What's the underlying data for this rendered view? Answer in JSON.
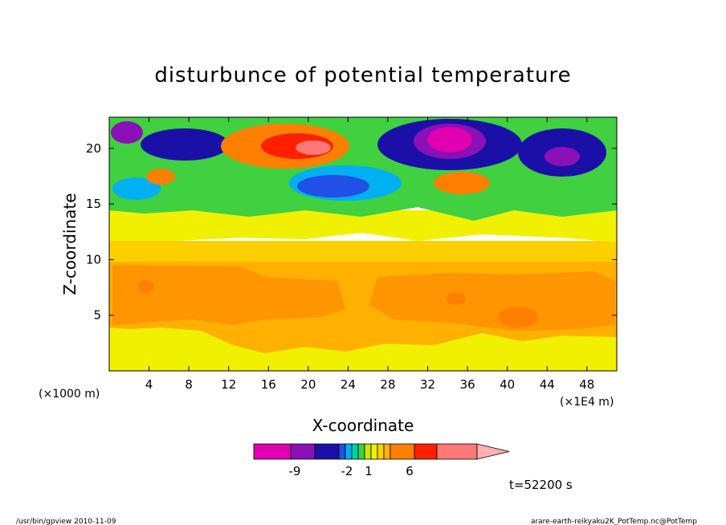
{
  "chart_data": {
    "type": "heatmap",
    "title": "disturbunce of potential temperature",
    "xlabel": "X-coordinate",
    "ylabel": "Z-coordinate",
    "x_unit_left": "(×1000 m)",
    "x_unit_right": "(×1E4 m)",
    "xlim": [
      0,
      51
    ],
    "ylim": [
      0,
      22.8
    ],
    "x_ticks": [
      4,
      8,
      12,
      16,
      20,
      24,
      28,
      32,
      36,
      40,
      44,
      48
    ],
    "y_ticks": [
      5,
      10,
      15,
      20
    ],
    "colorbar": {
      "colors": [
        "#e000b0",
        "#8a10b8",
        "#1a10a8",
        "#2050e8",
        "#00b0f0",
        "#00d0a0",
        "#40d040",
        "#c8e800",
        "#f0f000",
        "#ffd000",
        "#ffb000",
        "#ff8000",
        "#ff2000",
        "#ff7878",
        "#ffb0b0"
      ],
      "labels": [
        "-9",
        "-2",
        "1",
        "6"
      ]
    },
    "time_label": "t=52200 s",
    "regions": [
      {
        "zmin": 0,
        "zmax": 4,
        "level": 1,
        "note": "near-surface band"
      },
      {
        "zmin": 4,
        "zmax": 10,
        "level": 3,
        "note": "orange band with warm patches"
      },
      {
        "zmin": 10,
        "zmax": 16,
        "level": 2,
        "note": "yellow-orange band"
      },
      {
        "zmin": 16,
        "zmax": 22.8,
        "level": "mixed",
        "note": "turbulent layer, min near x=33 z=20.5, max near x=20 z=20"
      }
    ]
  },
  "footer": {
    "left": "/usr/bin/gpview  2010-11-09",
    "right": "arare-earth-reikyaku2K_PotTemp.nc@PotTemp"
  }
}
